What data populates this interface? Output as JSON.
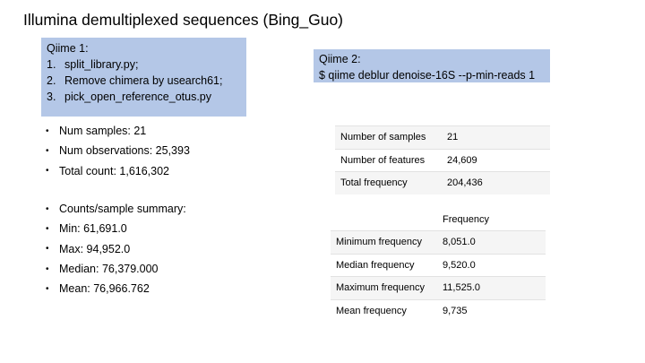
{
  "title": "Illumina demultiplexed sequences (Bing_Guo)",
  "qiime1": {
    "heading": "Qiime 1:",
    "steps": [
      {
        "num": "1.",
        "text": "split_library.py;"
      },
      {
        "num": "2.",
        "text": "Remove chimera by usearch61;"
      },
      {
        "num": "3.",
        "text": "pick_open_reference_otus.py"
      }
    ]
  },
  "qiime2": {
    "heading": "Qiime 2:",
    "command": "$ qiime deblur denoise-16S --p-min-reads 1"
  },
  "qiime1_stats": {
    "group1": [
      "Num samples: 21",
      "Num observations: 25,393",
      "Total count: 1,616,302"
    ],
    "group2": [
      "Counts/sample summary:",
      "Min: 61,691.0",
      "Max: 94,952.0",
      "Median: 76,379.000",
      "Mean: 76,966.762"
    ]
  },
  "summary_table": {
    "rows": [
      {
        "label": "Number of samples",
        "value": "21"
      },
      {
        "label": "Number of features",
        "value": "24,609"
      },
      {
        "label": "Total frequency",
        "value": "204,436"
      }
    ]
  },
  "frequency_table": {
    "header": "Frequency",
    "rows": [
      {
        "label": "Minimum frequency",
        "value": "8,051.0"
      },
      {
        "label": "Median frequency",
        "value": "9,520.0"
      },
      {
        "label": "Maximum frequency",
        "value": "11,525.0"
      },
      {
        "label": "Mean frequency",
        "value": "9,735"
      }
    ]
  },
  "colors": {
    "box": "#b4c7e7",
    "row_stripe": "#f5f5f5",
    "row_border": "#e2e2e2"
  }
}
